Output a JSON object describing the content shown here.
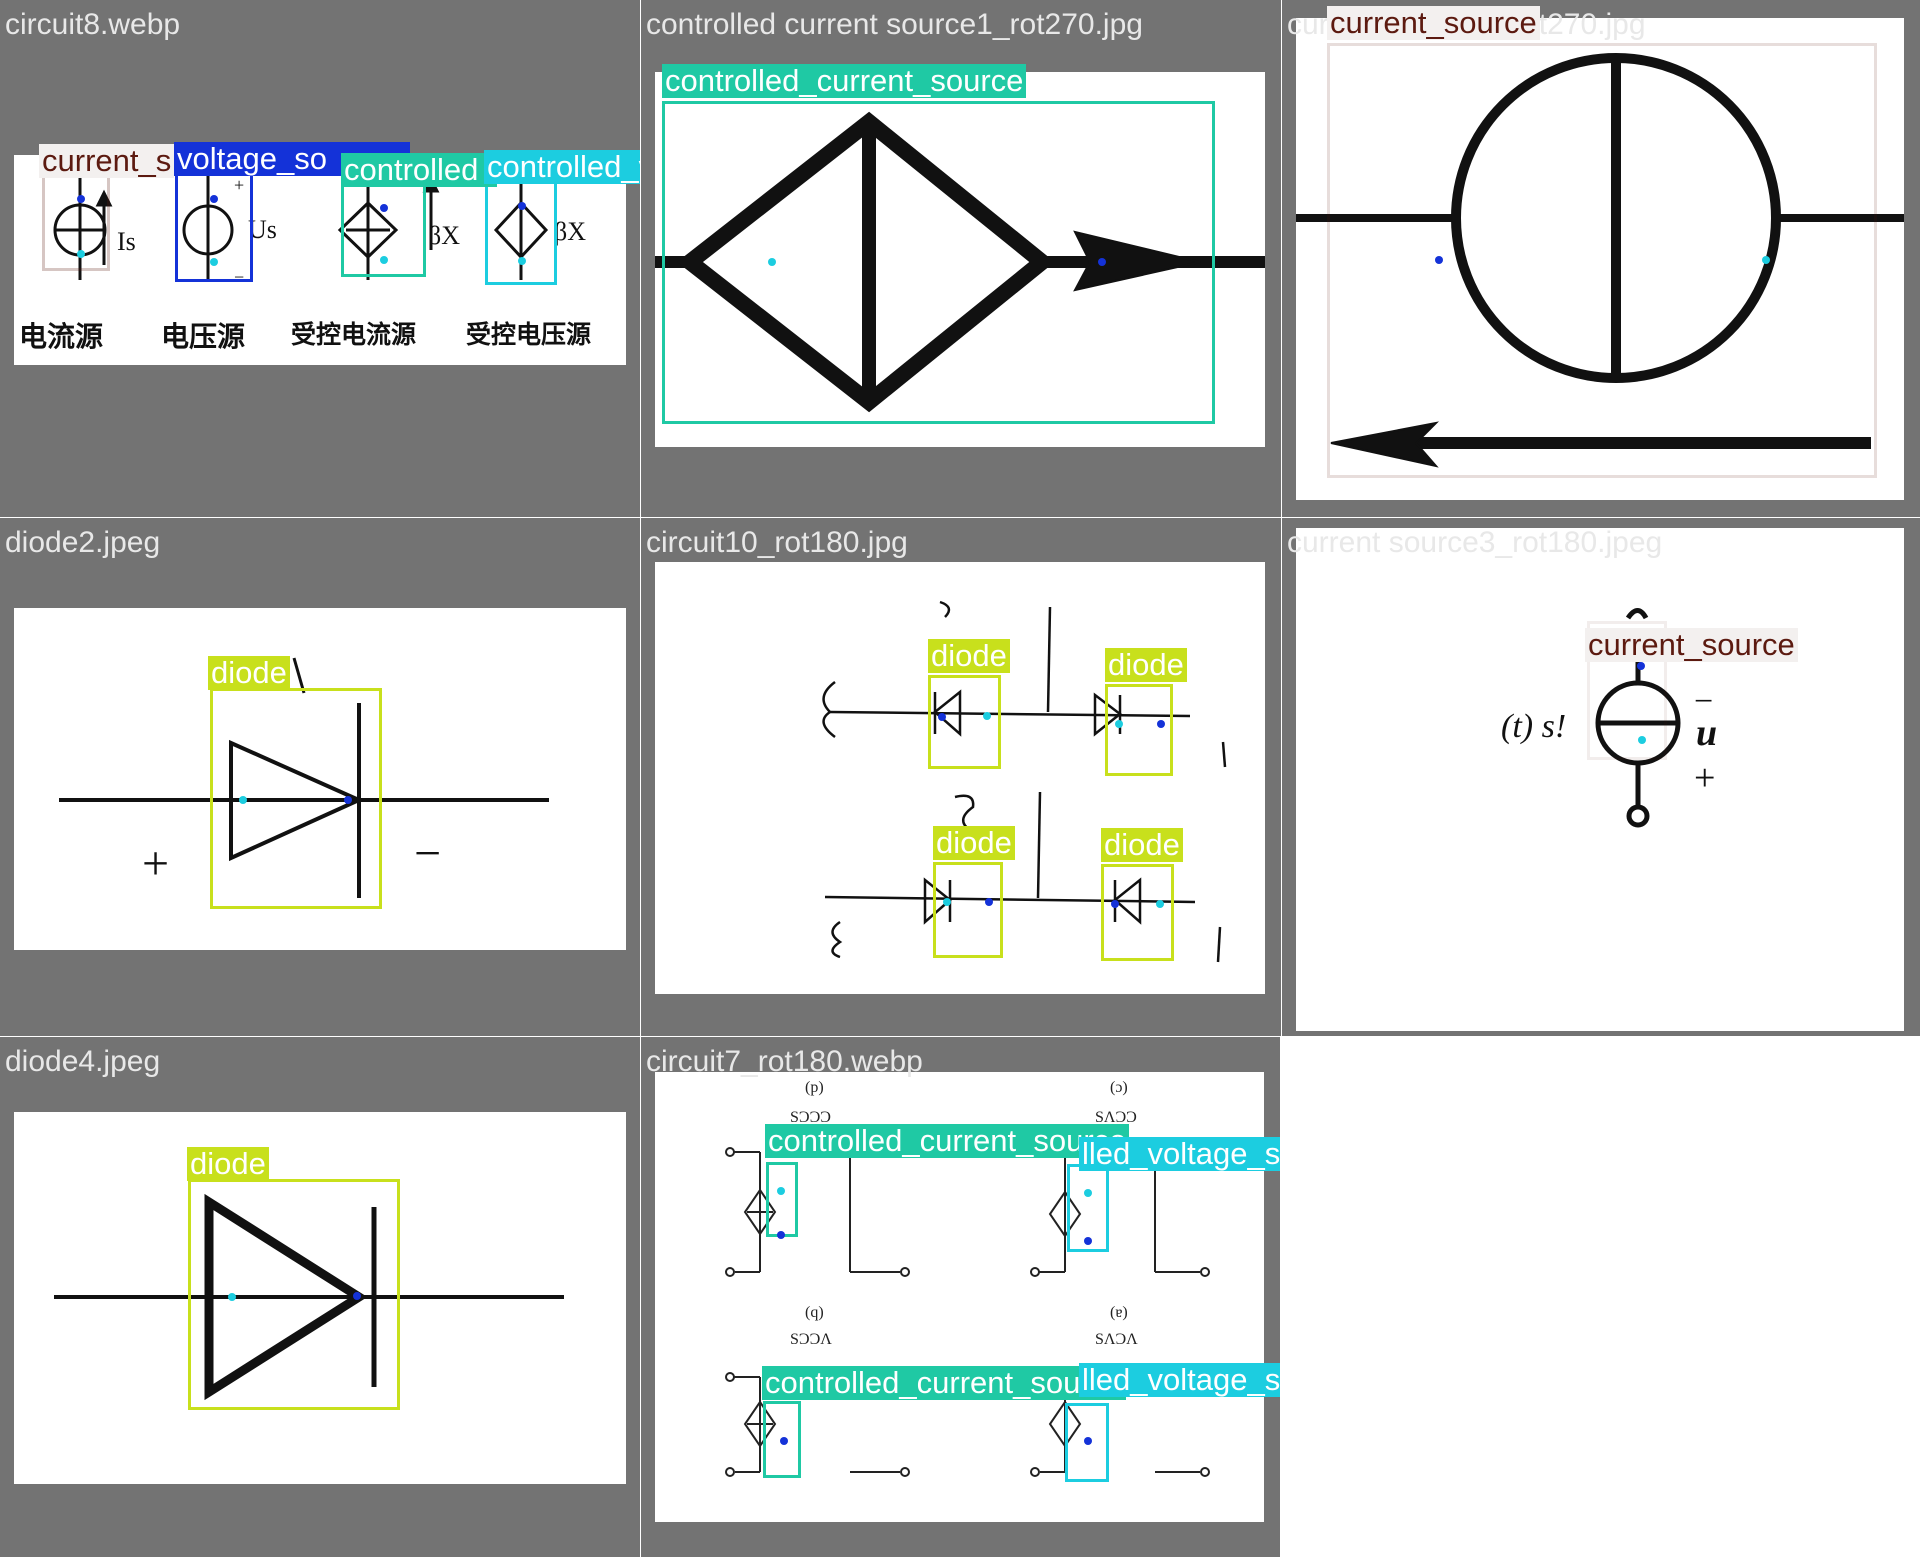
{
  "tiles": [
    {
      "name": "circuit8.webp"
    },
    {
      "name": "controlled current source1_rot270.jpg"
    },
    {
      "name": "current source2_rot270.jpg"
    },
    {
      "name": "diode2.jpeg"
    },
    {
      "name": "circuit10_rot180.jpg"
    },
    {
      "name": "current source3_rot180.jpeg"
    },
    {
      "name": "diode4.jpeg"
    },
    {
      "name": "circuit7_rot180.webp"
    }
  ],
  "labels": {
    "current_source": "current_source",
    "current_source_cut": "current_s",
    "voltage_source_cut": "voltage_so",
    "controlled_cut": "controlled",
    "controlled_voltage_source": "controlled_voltage_source",
    "controlled_current_source": "controlled_current_source",
    "diode": "diode",
    "lled_voltage_source": "lled_voltage_source"
  },
  "circuit8": {
    "captions": [
      "电流源",
      "电压源",
      "受控电流源",
      "受控电压源"
    ],
    "symbols": {
      "is": "Is",
      "us": "Us",
      "bx1": "βX",
      "bx2": "βX",
      "plus": "+",
      "minus": "−"
    }
  },
  "cs3": {
    "minus": "−",
    "plus": "+",
    "u": "u",
    "isrc": "(t) s!"
  },
  "diode2": {
    "plus": "+",
    "minus": "−"
  },
  "circuit7": {
    "texts": [
      "(p)",
      "(ɔ)",
      "SƆƆƆ",
      "SΛƆƆ",
      "(q)",
      "(ɐ)",
      "SƆƆΛ",
      "SΛƆΛ"
    ]
  },
  "colors": {
    "tile_bg": "#737373",
    "current_source": "#5c1a10",
    "voltage_source": "#1432d8",
    "controlled_current_source": "#1fc9a4",
    "controlled_voltage_source": "#1ccde0",
    "diode": "#c8e01c"
  }
}
